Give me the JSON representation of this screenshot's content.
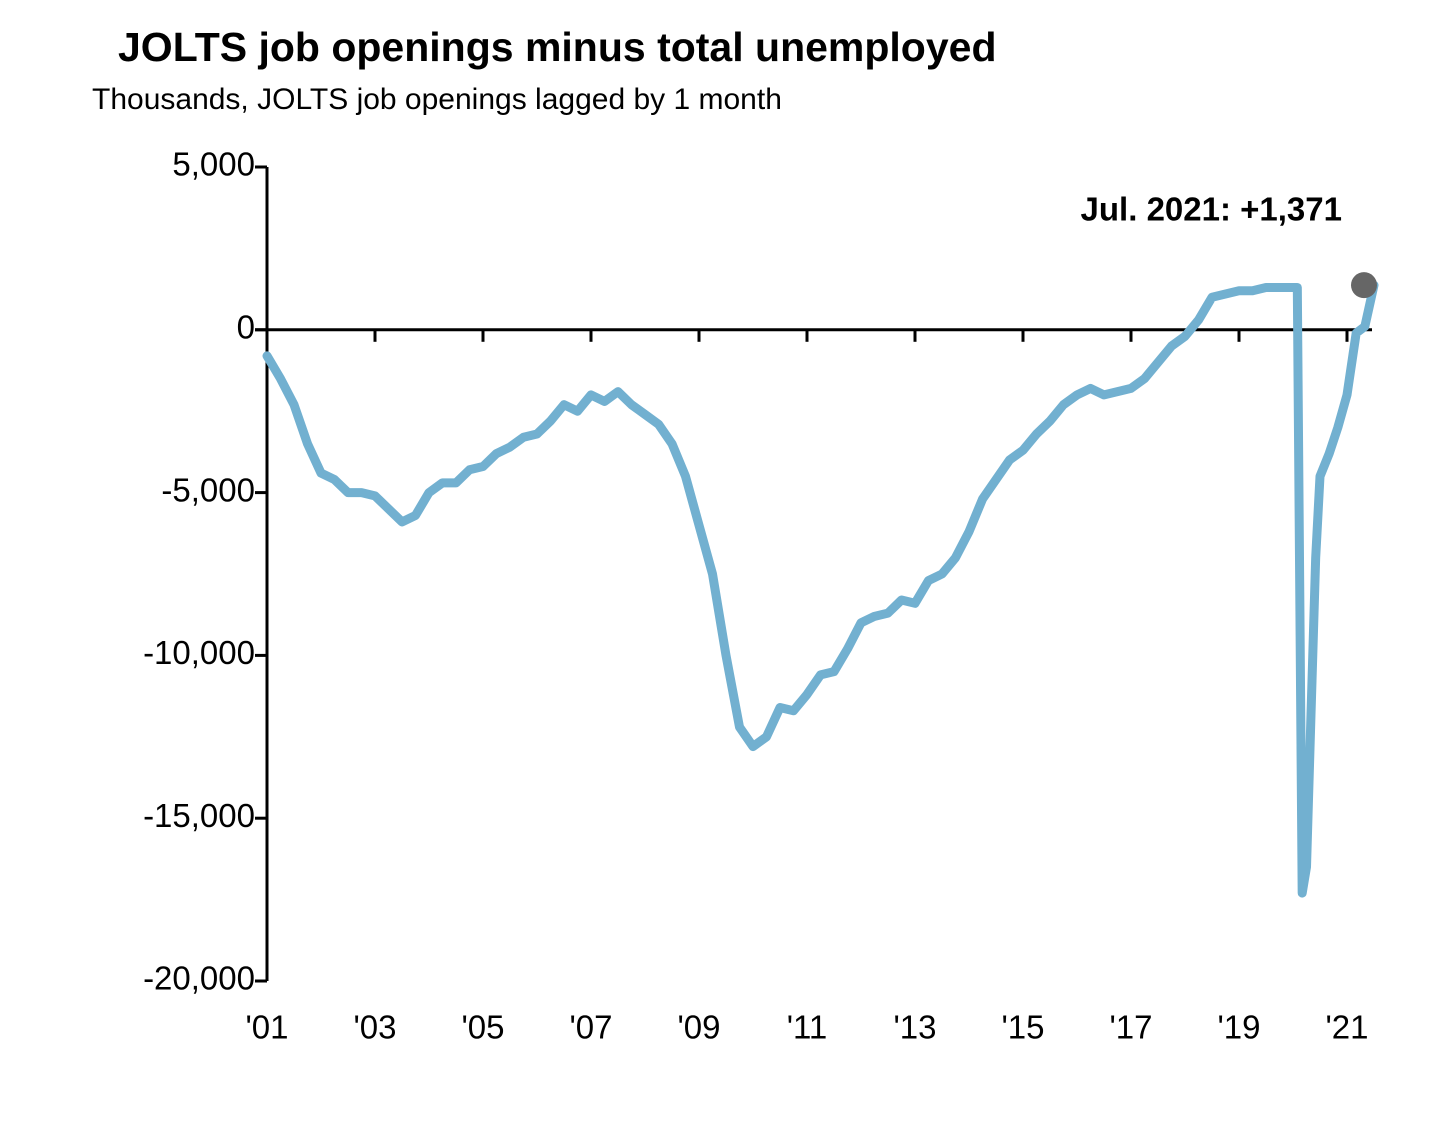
{
  "chart_data": {
    "type": "line",
    "title": "JOLTS job openings minus total unemployed",
    "subtitle": "Thousands, JOLTS job openings lagged by 1 month",
    "annotation": "Jul. 2021: +1,371",
    "x": [
      2001.0,
      2001.25,
      2001.5,
      2001.75,
      2002.0,
      2002.25,
      2002.5,
      2002.75,
      2003.0,
      2003.25,
      2003.5,
      2003.75,
      2004.0,
      2004.25,
      2004.5,
      2004.75,
      2005.0,
      2005.25,
      2005.5,
      2005.75,
      2006.0,
      2006.25,
      2006.5,
      2006.75,
      2007.0,
      2007.25,
      2007.5,
      2007.75,
      2008.0,
      2008.25,
      2008.5,
      2008.75,
      2009.0,
      2009.25,
      2009.5,
      2009.75,
      2010.0,
      2010.25,
      2010.5,
      2010.75,
      2011.0,
      2011.25,
      2011.5,
      2011.75,
      2012.0,
      2012.25,
      2012.5,
      2012.75,
      2013.0,
      2013.25,
      2013.5,
      2013.75,
      2014.0,
      2014.25,
      2014.5,
      2014.75,
      2015.0,
      2015.25,
      2015.5,
      2015.75,
      2016.0,
      2016.25,
      2016.5,
      2016.75,
      2017.0,
      2017.25,
      2017.5,
      2017.75,
      2018.0,
      2018.25,
      2018.5,
      2018.75,
      2019.0,
      2019.25,
      2019.5,
      2019.75,
      2020.0,
      2020.08,
      2020.17,
      2020.25,
      2020.33,
      2020.42,
      2020.5,
      2020.67,
      2020.83,
      2021.0,
      2021.17,
      2021.33,
      2021.5
    ],
    "series": [
      {
        "name": "JOLTS job openings minus total unemployed",
        "color": "#72b0d0",
        "values": [
          -800,
          -1500,
          -2300,
          -3500,
          -4400,
          -4600,
          -5000,
          -5000,
          -5100,
          -5500,
          -5900,
          -5700,
          -5000,
          -4700,
          -4700,
          -4300,
          -4200,
          -3800,
          -3600,
          -3300,
          -3200,
          -2800,
          -2300,
          -2500,
          -2000,
          -2200,
          -1900,
          -2300,
          -2600,
          -2900,
          -3500,
          -4500,
          -6000,
          -7500,
          -10000,
          -12200,
          -12800,
          -12500,
          -11600,
          -11700,
          -11200,
          -10600,
          -10500,
          -9800,
          -9000,
          -8800,
          -8700,
          -8300,
          -8400,
          -7700,
          -7500,
          -7000,
          -6200,
          -5200,
          -4600,
          -4000,
          -3700,
          -3200,
          -2800,
          -2300,
          -2000,
          -1800,
          -2000,
          -1900,
          -1800,
          -1500,
          -1000,
          -500,
          -200,
          300,
          1000,
          1100,
          1200,
          1200,
          1300,
          1300,
          1300,
          1300,
          -17300,
          -16500,
          -12000,
          -7000,
          -4500,
          -3800,
          -3000,
          -2000,
          -100,
          100,
          1371
        ]
      }
    ],
    "xlim": [
      2001,
      2021.5
    ],
    "xticks": [
      {
        "value": 2001,
        "label": "'01"
      },
      {
        "value": 2003,
        "label": "'03"
      },
      {
        "value": 2005,
        "label": "'05"
      },
      {
        "value": 2007,
        "label": "'07"
      },
      {
        "value": 2009,
        "label": "'09"
      },
      {
        "value": 2011,
        "label": "'11"
      },
      {
        "value": 2013,
        "label": "'13"
      },
      {
        "value": 2015,
        "label": "'15"
      },
      {
        "value": 2017,
        "label": "'17"
      },
      {
        "value": 2019,
        "label": "'19"
      },
      {
        "value": 2021,
        "label": "'21"
      }
    ],
    "ylim": [
      -20000,
      5000
    ],
    "yticks": [
      {
        "value": 5000,
        "label": "5,000"
      },
      0,
      {
        "value": -5000,
        "label": "-5,000"
      },
      {
        "value": -10000,
        "label": "-10,000"
      },
      {
        "value": -15000,
        "label": "-15,000"
      },
      {
        "value": -20000,
        "label": "-20,000"
      }
    ],
    "marker_color": "#666666"
  }
}
